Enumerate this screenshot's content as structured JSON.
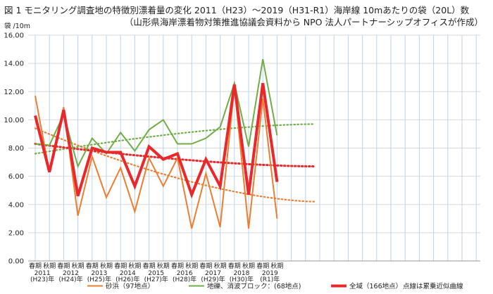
{
  "header": {
    "title_line1": "図 1 モニタリング調査地の特徴別漂着量の変化 2011（H23）～2019（H31-R1）海岸線 10mあたりの袋（20L）数",
    "title_line2": "（山形県海岸漂着物対策推進協議会資料から NPO 法人パートナーシップオフィスが作成）",
    "y_unit": "袋 /10m"
  },
  "chart_data": {
    "type": "line",
    "title": "モニタリング調査地の特徴別漂着量の変化 2011（H23）～2019（H31-R1）海岸線 10mあたりの袋（20L）数",
    "ylabel": "袋 /10m",
    "ylim": [
      0,
      16
    ],
    "yticks": [
      "0.00",
      "2.00",
      "4.00",
      "6.00",
      "8.00",
      "10.00",
      "12.00",
      "14.00",
      "16.00"
    ],
    "season_labels": [
      "春期",
      "秋期"
    ],
    "year_labels": [
      {
        "year": "2011",
        "era": "(H23)年"
      },
      {
        "year": "2012",
        "era": "(H24)年"
      },
      {
        "year": "2013",
        "era": "(H25)年"
      },
      {
        "year": "2014",
        "era": "(H26)年"
      },
      {
        "year": "2015",
        "era": "(H27)年"
      },
      {
        "year": "2016",
        "era": "(H28)年"
      },
      {
        "year": "2017",
        "era": "(H29)年"
      },
      {
        "year": "2018",
        "era": "(H30)年"
      },
      {
        "year": "2019",
        "era": "(R1)年"
      }
    ],
    "grid": true,
    "series": [
      {
        "name": "砂浜（97地点）",
        "color": "#ED7D31",
        "width": 2,
        "values": [
          11.7,
          6.3,
          10.9,
          3.2,
          7.4,
          4.5,
          6.6,
          3.5,
          7.3,
          5.3,
          7.3,
          2.3,
          6.2,
          2.4,
          12.3,
          2.3,
          11.5,
          3.0
        ]
      },
      {
        "name": "地礫、消波ブロック：(68地点)",
        "color": "#70AD47",
        "width": 2,
        "values": [
          8.3,
          8.2,
          10.4,
          6.7,
          8.7,
          7.6,
          9.1,
          7.8,
          9.3,
          10.0,
          8.3,
          8.3,
          8.7,
          9.5,
          12.6,
          8.1,
          14.3,
          8.9
        ]
      },
      {
        "name": "全域（166地点）",
        "color": "#E8282B",
        "width": 4,
        "values": [
          10.3,
          6.3,
          10.7,
          4.6,
          8.0,
          7.7,
          7.7,
          5.3,
          8.1,
          7.2,
          7.6,
          4.7,
          7.2,
          5.3,
          12.5,
          4.7,
          12.6,
          5.6
        ]
      }
    ],
    "trend_lines": [
      {
        "of": "砂浜（97地点）",
        "color": "#ED7D31",
        "style": "dotted",
        "start": 9.4,
        "end": 4.2
      },
      {
        "of": "地礫、消波ブロック：(68地点)",
        "color": "#70AD47",
        "style": "dotted",
        "start": 7.6,
        "end": 9.7
      },
      {
        "of": "全域（166地点）",
        "color": "#E8282B",
        "style": "dotted",
        "start": 8.3,
        "end": 6.7
      }
    ],
    "legend": {
      "position": "bottom",
      "items": [
        "砂浜（97地点）",
        "地礫、消波ブロック：(68地点)",
        "全域（166地点）"
      ],
      "note": "点線は累乗近似曲線"
    }
  }
}
